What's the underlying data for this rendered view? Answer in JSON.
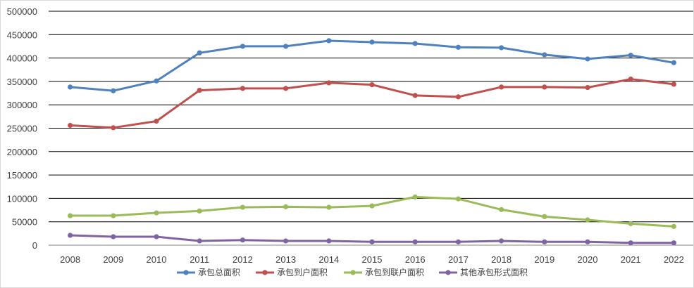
{
  "chart_data": {
    "type": "line",
    "title": "",
    "xlabel": "",
    "ylabel": "",
    "ylim": [
      0,
      500000
    ],
    "yticks": [
      0,
      50000,
      100000,
      150000,
      200000,
      250000,
      300000,
      350000,
      400000,
      450000,
      500000
    ],
    "ytick_labels": [
      "0",
      "50000",
      "100000",
      "150000",
      "200000",
      "250000",
      "300000",
      "350000",
      "400000",
      "450000",
      "500000"
    ],
    "categories": [
      "2008",
      "2009",
      "2010",
      "2011",
      "2012",
      "2013",
      "2014",
      "2015",
      "2016",
      "2017",
      "2018",
      "2019",
      "2020",
      "2021",
      "2022"
    ],
    "grid": true,
    "legend_position": "bottom",
    "series": [
      {
        "name": "承包总面积",
        "color": "#4f81bd",
        "values": [
          338000,
          330000,
          351000,
          411000,
          425000,
          425000,
          437000,
          434000,
          431000,
          423000,
          422000,
          407000,
          398000,
          406000,
          390000
        ]
      },
      {
        "name": "承包到户面积",
        "color": "#c0504d",
        "values": [
          256000,
          251000,
          265000,
          331000,
          335000,
          335000,
          347000,
          343000,
          320000,
          317000,
          338000,
          338000,
          337000,
          355000,
          344000
        ]
      },
      {
        "name": "承包到联户面积",
        "color": "#9bbb59",
        "values": [
          63000,
          63000,
          69000,
          73000,
          81000,
          82000,
          81000,
          84000,
          103000,
          99000,
          76000,
          61000,
          54000,
          46000,
          40000
        ]
      },
      {
        "name": "其他承包形式面积",
        "color": "#8064a2",
        "values": [
          21000,
          18000,
          18000,
          9000,
          11000,
          9000,
          9000,
          7000,
          7000,
          7000,
          9000,
          7000,
          7000,
          5000,
          5000
        ]
      }
    ]
  }
}
